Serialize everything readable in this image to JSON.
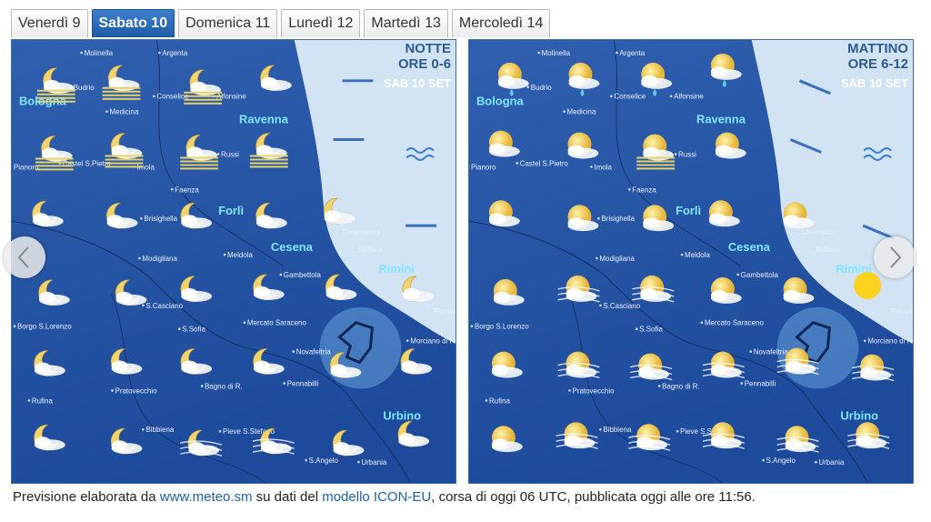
{
  "tabs": [
    "Venerdì 9",
    "Sabato 10",
    "Domenica 11",
    "Lunedì 12",
    "Martedì 13",
    "Mercoledì 14"
  ],
  "panels": [
    {
      "period": "NOTTE",
      "hours": "ORE 0-6",
      "date": "SAB 10 SET"
    },
    {
      "period": "MATTINO",
      "hours": "ORE 6-12",
      "date": "SAB 10 SET"
    }
  ],
  "map": {
    "cities": [
      "Bologna",
      "Ravenna",
      "Forlì",
      "Cesena",
      "Rimini",
      "Urbino"
    ],
    "towns": [
      "Molinella",
      "Argenta",
      "Budrio",
      "Medicina",
      "Conselice",
      "Alfonsine",
      "Castel S.Pietro",
      "Imola",
      "Russi",
      "Pianoro",
      "Faenza",
      "Brisighella",
      "Meldola",
      "Modigliana",
      "Gambettola",
      "Bellaria",
      "Cesenatico",
      "S.Casciano",
      "Borgo S.Lorenzo",
      "S.Sofia",
      "Mercato Saraceno",
      "Novafeltria",
      "Morciano di R.",
      "Riccione",
      "Pratovecchio",
      "Bagno di R.",
      "Pennabilli",
      "Rufina",
      "Bibbiena",
      "Pieve S.Stefano",
      "S.Angelo",
      "Urbania"
    ]
  },
  "footer": {
    "text_1": "Previsione elaborata da",
    "link_1": "www.meteo.sm",
    "text_2": "su dati del",
    "link_2": "modello ICON-EU",
    "text_3": ", corsa di oggi 06 UTC, pubblicata oggi alle ore 11:56."
  }
}
